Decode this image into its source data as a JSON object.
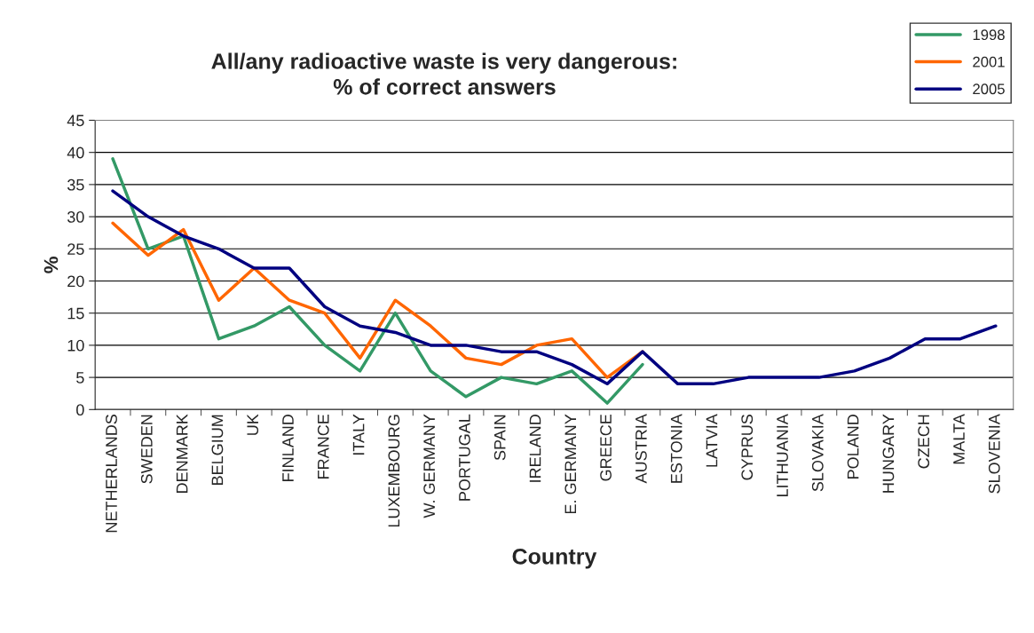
{
  "chart_data": {
    "type": "line",
    "title": "All/any radioactive waste is very dangerous:\n% of correct answers",
    "xlabel": "Country",
    "ylabel": "%",
    "categories": [
      "NETHERLANDS",
      "SWEDEN",
      "DENMARK",
      "BELGIUM",
      "UK",
      "FINLAND",
      "FRANCE",
      "ITALY",
      "LUXEMBOURG",
      "W. GERMANY",
      "PORTUGAL",
      "SPAIN",
      "IRELAND",
      "E. GERMANY",
      "GREECE",
      "AUSTRIA",
      "ESTONIA",
      "LATVIA",
      "CYPRUS",
      "LITHUANIA",
      "SLOVAKIA",
      "POLAND",
      "HUNGARY",
      "CZECH",
      "MALTA",
      "SLOVENIA"
    ],
    "series": [
      {
        "name": "1998",
        "color": "#339966",
        "values": [
          39,
          25,
          27,
          11,
          13,
          16,
          10,
          6,
          15,
          6,
          2,
          5,
          4,
          6,
          1,
          7,
          null,
          null,
          null,
          null,
          null,
          null,
          null,
          null,
          null,
          null
        ]
      },
      {
        "name": "2001",
        "color": "#ff6600",
        "values": [
          29,
          24,
          28,
          17,
          22,
          17,
          15,
          8,
          17,
          13,
          8,
          7,
          10,
          11,
          5,
          9,
          null,
          null,
          null,
          null,
          null,
          null,
          null,
          null,
          null,
          null
        ]
      },
      {
        "name": "2005",
        "color": "#000080",
        "values": [
          34,
          30,
          27,
          25,
          22,
          22,
          16,
          13,
          12,
          10,
          10,
          9,
          9,
          7,
          4,
          9,
          4,
          4,
          5,
          5,
          5,
          6,
          8,
          11,
          11,
          13
        ]
      }
    ],
    "ylim": [
      0,
      45
    ],
    "yticks": [
      0,
      5,
      10,
      15,
      20,
      25,
      30,
      35,
      40,
      45
    ],
    "grid": "y",
    "legend": "top right",
    "marker": "none",
    "line_style": "solid"
  }
}
